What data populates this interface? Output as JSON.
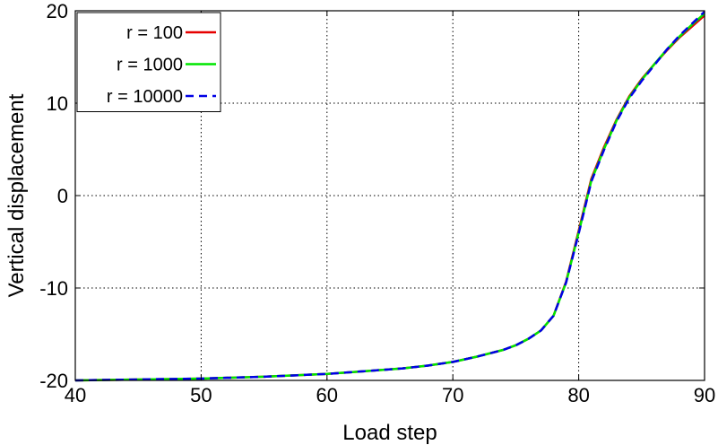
{
  "chart_data": {
    "type": "line",
    "title": "",
    "xlabel": "Load step",
    "ylabel": "Vertical displacement",
    "xlim": [
      40,
      90
    ],
    "ylim": [
      -20,
      20
    ],
    "x_ticks": [
      40,
      50,
      60,
      70,
      80,
      90
    ],
    "y_ticks": [
      -20,
      -10,
      0,
      10,
      20
    ],
    "x_tick_labels": [
      "40",
      "50",
      "60",
      "70",
      "80",
      "90"
    ],
    "y_tick_labels": [
      "-20",
      "-10",
      "0",
      "10",
      "20"
    ],
    "grid": true,
    "legend_position": "top-left",
    "series": [
      {
        "name": "r = 100",
        "color": "#e60000",
        "dash": "solid",
        "x": [
          40,
          45,
          50,
          55,
          60,
          63,
          66,
          68,
          70,
          72,
          74,
          75,
          76,
          77,
          78,
          79,
          80,
          81,
          82,
          83,
          84,
          85,
          86,
          87,
          88,
          89,
          90
        ],
        "y": [
          -20,
          -19.9,
          -19.8,
          -19.6,
          -19.3,
          -19.0,
          -18.7,
          -18.4,
          -18.0,
          -17.4,
          -16.7,
          -16.2,
          -15.5,
          -14.6,
          -13.0,
          -9.3,
          -3.8,
          1.8,
          5.2,
          8.2,
          10.7,
          12.6,
          14.2,
          15.7,
          17.1,
          18.3,
          19.5
        ]
      },
      {
        "name": "r = 1000",
        "color": "#00e600",
        "dash": "solid",
        "x": [
          40,
          45,
          50,
          55,
          60,
          63,
          66,
          68,
          70,
          72,
          74,
          75,
          76,
          77,
          78,
          79,
          80,
          81,
          82,
          83,
          84,
          85,
          86,
          87,
          88,
          89,
          90
        ],
        "y": [
          -20,
          -19.9,
          -19.8,
          -19.6,
          -19.3,
          -19.0,
          -18.7,
          -18.4,
          -18.0,
          -17.4,
          -16.7,
          -16.2,
          -15.5,
          -14.6,
          -13.0,
          -9.4,
          -4.0,
          1.6,
          5.0,
          8.1,
          10.6,
          12.5,
          14.2,
          15.8,
          17.2,
          18.5,
          19.7
        ]
      },
      {
        "name": "r = 10000",
        "color": "#0000e6",
        "dash": "dashed",
        "x": [
          40,
          45,
          50,
          55,
          60,
          63,
          66,
          68,
          70,
          72,
          74,
          75,
          76,
          77,
          78,
          79,
          80,
          81,
          82,
          83,
          84,
          85,
          86,
          87,
          88,
          89,
          90
        ],
        "y": [
          -20,
          -19.9,
          -19.8,
          -19.6,
          -19.3,
          -19.0,
          -18.7,
          -18.4,
          -18.0,
          -17.4,
          -16.7,
          -16.2,
          -15.5,
          -14.6,
          -13.0,
          -9.4,
          -4.1,
          1.5,
          4.9,
          8.0,
          10.5,
          12.4,
          14.1,
          15.8,
          17.3,
          18.6,
          19.9
        ]
      }
    ]
  }
}
